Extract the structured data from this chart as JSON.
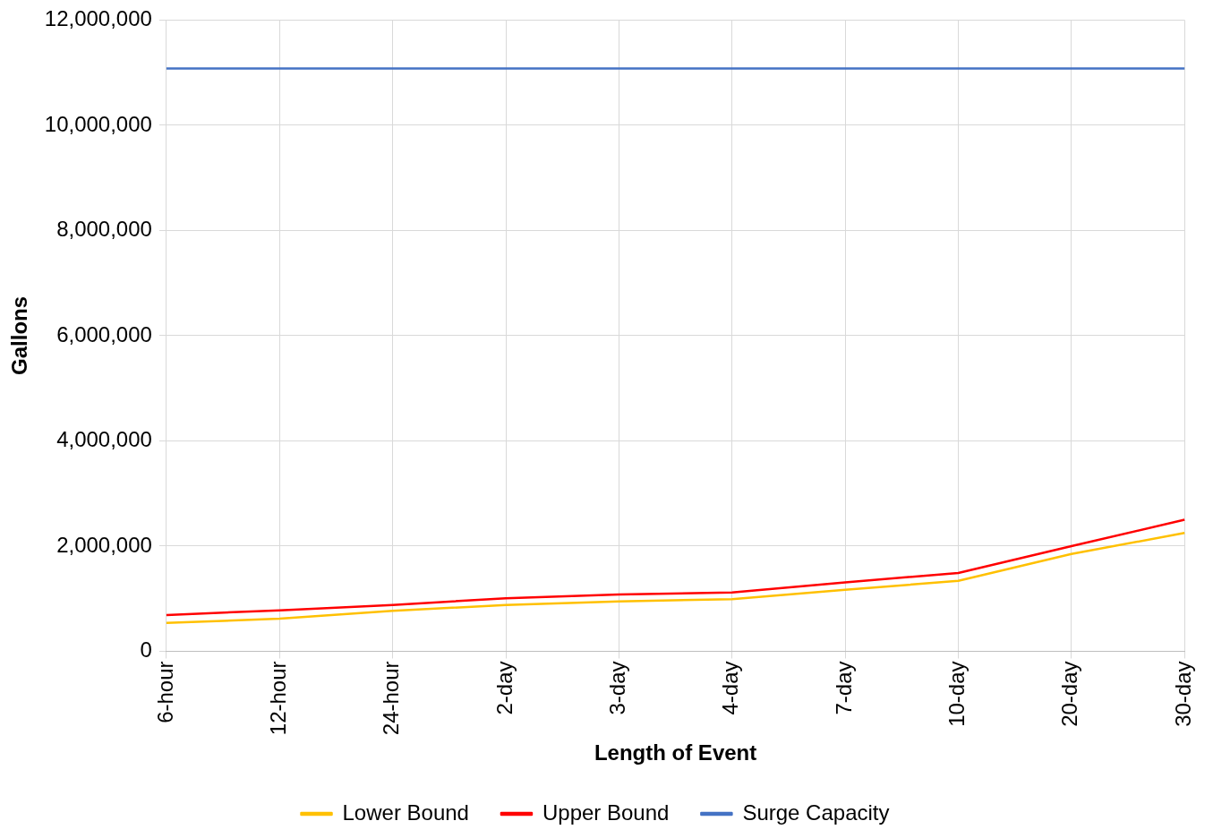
{
  "chart_data": {
    "type": "line",
    "xlabel": "Length of Event",
    "ylabel": "Gallons",
    "categories": [
      "6-hour",
      "12-hour",
      "24-hour",
      "2-day",
      "3-day",
      "4-day",
      "7-day",
      "10-day",
      "20-day",
      "30-day"
    ],
    "series": [
      {
        "name": "Lower Bound",
        "color": "#ffc000",
        "values": [
          540000,
          620000,
          770000,
          880000,
          950000,
          990000,
          1170000,
          1340000,
          1850000,
          2250000
        ]
      },
      {
        "name": "Upper Bound",
        "color": "#ff0000",
        "values": [
          690000,
          780000,
          880000,
          1010000,
          1080000,
          1120000,
          1310000,
          1490000,
          2000000,
          2500000
        ]
      },
      {
        "name": "Surge Capacity",
        "color": "#4472c4",
        "values": [
          11080000,
          11080000,
          11080000,
          11080000,
          11080000,
          11080000,
          11080000,
          11080000,
          11080000,
          11080000
        ]
      }
    ],
    "ylim": [
      0,
      12000000
    ],
    "yticks": [
      0,
      {
        "value": 2000000,
        "label": "2,000,000"
      },
      {
        "value": 4000000,
        "label": "4,000,000"
      },
      {
        "value": 6000000,
        "label": "6,000,000"
      },
      {
        "value": 8000000,
        "label": "8,000,000"
      },
      {
        "value": 10000000,
        "label": "10,000,000"
      },
      {
        "value": 12000000,
        "label": "12,000,000"
      }
    ],
    "grid": true,
    "legend": "bottom",
    "marker": "none",
    "line_style": "solid"
  }
}
